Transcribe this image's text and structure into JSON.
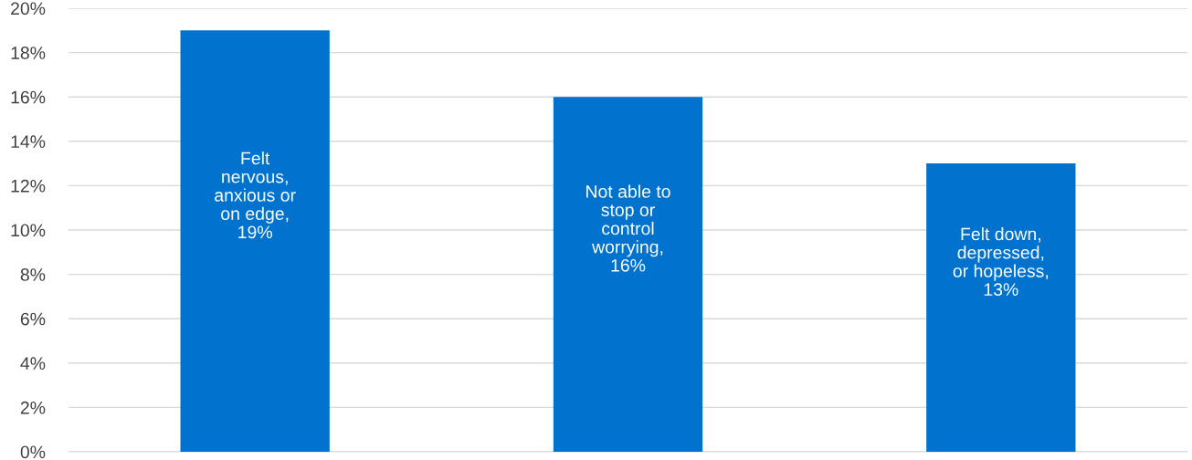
{
  "chart_data": {
    "type": "bar",
    "categories": [
      "Felt\nnervous,\nanxious or\non edge",
      "Not able to\nstop or\ncontrol\nworrying",
      "Felt down,\ndepressed,\nor hopeless"
    ],
    "values": [
      19,
      16,
      13
    ],
    "value_labels": [
      ",\n19%",
      ",\n16%",
      ",\n13%"
    ],
    "color": "#0173cf",
    "ylim": [
      0,
      20
    ],
    "yticks": [
      {
        "value": 0,
        "label": "0%"
      },
      {
        "value": 2,
        "label": "2%"
      },
      {
        "value": 4,
        "label": "4%"
      },
      {
        "value": 6,
        "label": "6%"
      },
      {
        "value": 8,
        "label": "8%"
      },
      {
        "value": 10,
        "label": "10%"
      },
      {
        "value": 12,
        "label": "12%"
      },
      {
        "value": 14,
        "label": "14%"
      },
      {
        "value": 16,
        "label": "16%"
      },
      {
        "value": 18,
        "label": "18%"
      },
      {
        "value": 20,
        "label": "20%"
      }
    ],
    "grid": "y"
  }
}
